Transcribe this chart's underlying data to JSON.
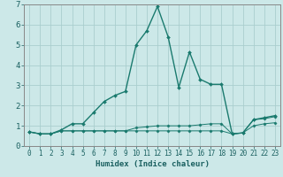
{
  "xlabel": "Humidex (Indice chaleur)",
  "x_values": [
    0,
    1,
    2,
    3,
    4,
    5,
    6,
    7,
    8,
    9,
    10,
    11,
    12,
    13,
    14,
    15,
    16,
    17,
    18,
    19,
    20,
    21,
    22,
    23
  ],
  "line1": [
    0.7,
    0.6,
    0.6,
    0.8,
    1.1,
    1.1,
    1.65,
    2.2,
    2.5,
    2.7,
    5.0,
    5.7,
    6.9,
    5.4,
    2.9,
    4.65,
    3.3,
    3.05,
    3.05,
    0.6,
    0.65,
    1.3,
    1.4,
    1.5
  ],
  "line2": [
    0.7,
    0.6,
    0.6,
    0.75,
    0.75,
    0.75,
    0.75,
    0.75,
    0.75,
    0.75,
    0.75,
    0.75,
    0.75,
    0.75,
    0.75,
    0.75,
    0.75,
    0.75,
    0.75,
    0.6,
    0.65,
    1.0,
    1.1,
    1.15
  ],
  "line3": [
    0.7,
    0.6,
    0.6,
    0.75,
    0.75,
    0.75,
    0.75,
    0.75,
    0.75,
    0.75,
    0.9,
    0.95,
    1.0,
    1.0,
    1.0,
    1.0,
    1.05,
    1.1,
    1.1,
    0.6,
    0.65,
    1.3,
    1.35,
    1.45
  ],
  "line_color": "#1a7a6e",
  "bg_color": "#cce8e8",
  "grid_color": "#aacece",
  "ylim": [
    0,
    7
  ],
  "xlim": [
    -0.5,
    23.5
  ],
  "yticks": [
    0,
    1,
    2,
    3,
    4,
    5,
    6,
    7
  ],
  "xticks": [
    0,
    1,
    2,
    3,
    4,
    5,
    6,
    7,
    8,
    9,
    10,
    11,
    12,
    13,
    14,
    15,
    16,
    17,
    18,
    19,
    20,
    21,
    22,
    23
  ],
  "xlabel_fontsize": 6.5,
  "tick_fontsize": 5.5,
  "ytick_fontsize": 6.5,
  "marker_size": 2.0,
  "linewidth1": 1.0,
  "linewidth2": 0.7
}
